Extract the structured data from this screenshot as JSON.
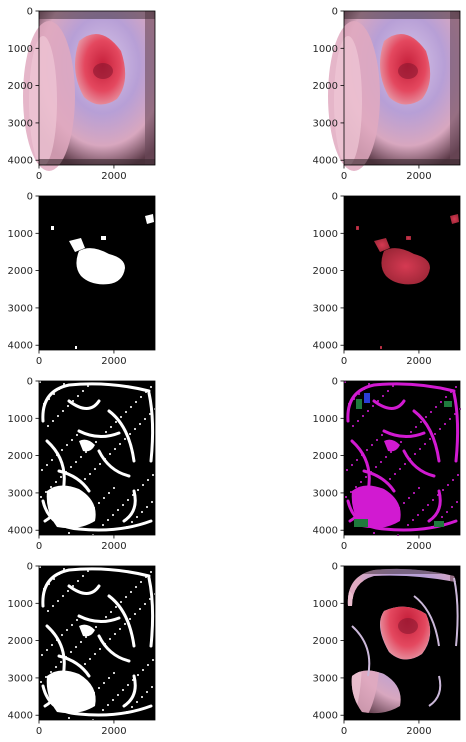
{
  "figure": {
    "panels": [
      {
        "id": "r1c1",
        "kind": "photo",
        "row": 0,
        "col": 0
      },
      {
        "id": "r1c2",
        "kind": "photo",
        "row": 0,
        "col": 1
      },
      {
        "id": "r2c1",
        "kind": "binary",
        "row": 1,
        "col": 0
      },
      {
        "id": "r2c2",
        "kind": "masked",
        "row": 1,
        "col": 1
      },
      {
        "id": "r3c1",
        "kind": "edges",
        "row": 2,
        "col": 0
      },
      {
        "id": "r3c2",
        "kind": "edges-color",
        "row": 2,
        "col": 1
      },
      {
        "id": "r4c1",
        "kind": "edges",
        "row": 3,
        "col": 0
      },
      {
        "id": "r4c2",
        "kind": "edges-photo",
        "row": 3,
        "col": 1
      }
    ],
    "yticks": [
      "0",
      "1000",
      "2000",
      "3000",
      "4000"
    ],
    "xticks": [
      "0",
      "2000"
    ],
    "ytick_values": [
      0,
      1000,
      2000,
      3000,
      4000
    ],
    "xtick_values": [
      0,
      2000
    ],
    "y_range": [
      0,
      4128
    ],
    "x_range": [
      0,
      3096
    ]
  },
  "colors": {
    "tissue_pink": "#e7b6c6",
    "tissue_purple": "#b7a6d9",
    "lesion_red": "#d93a50",
    "magenta": "#d11ad1",
    "green": "#1f7a3d",
    "blue": "#2a3dd6",
    "bg": "#ffffff",
    "axis": "#262626"
  }
}
